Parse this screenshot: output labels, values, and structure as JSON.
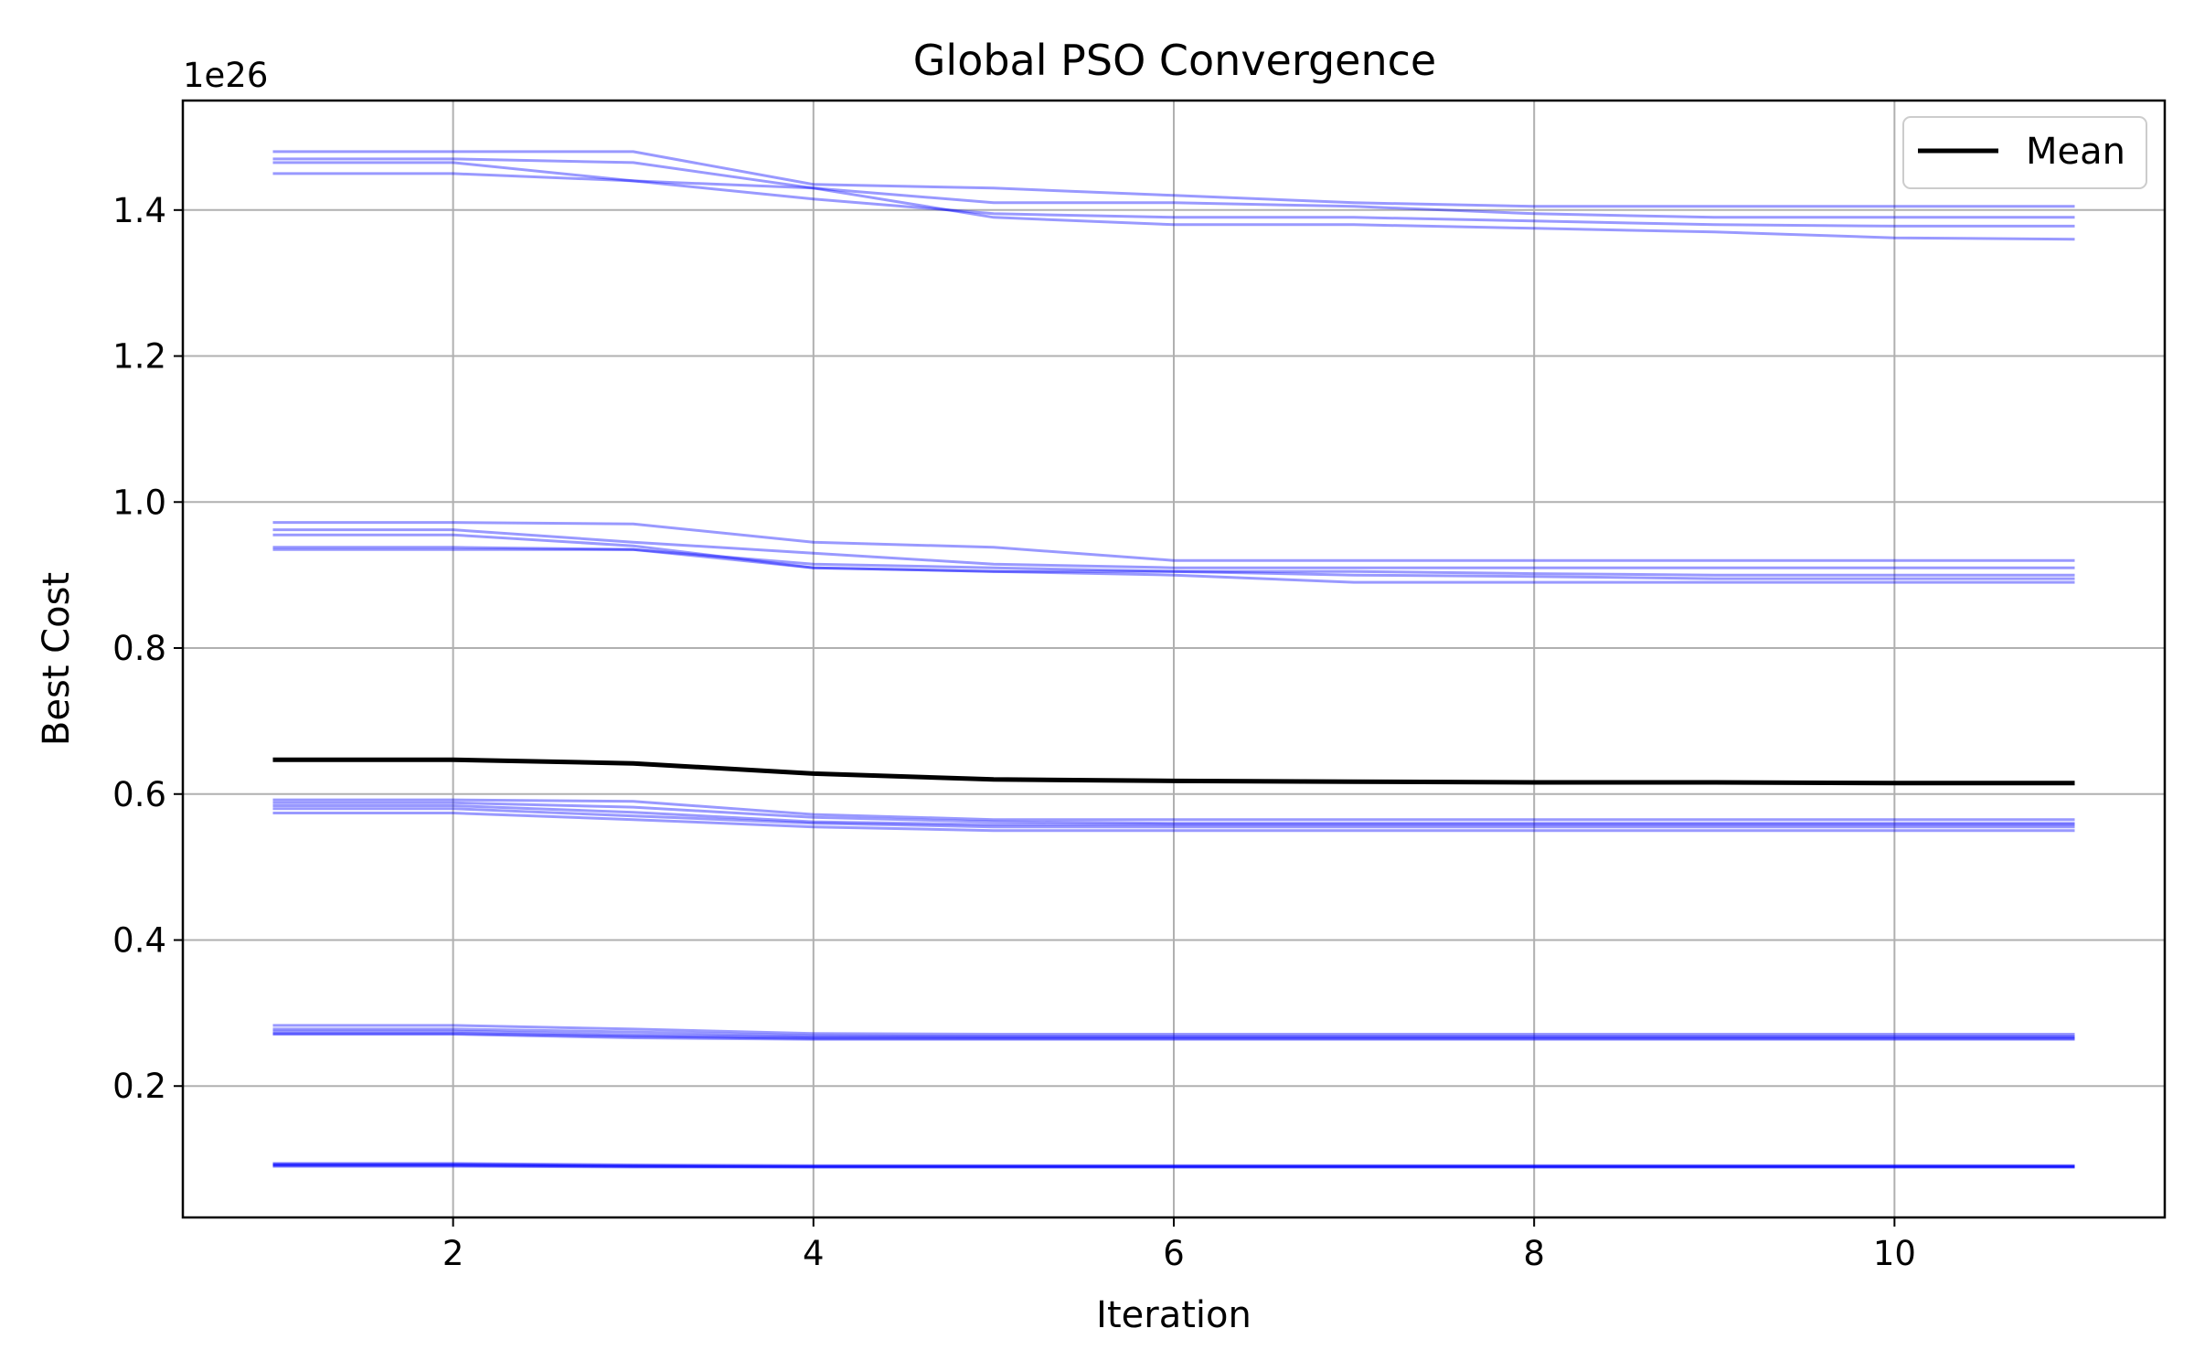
{
  "chart_data": {
    "type": "line",
    "title": "Global PSO Convergence",
    "xlabel": "Iteration",
    "ylabel": "Best Cost",
    "y_offset_label": "1e26",
    "xlim": [
      0.5,
      11.5
    ],
    "ylim": [
      0.02,
      1.55
    ],
    "x_ticks": [
      2,
      4,
      6,
      8,
      10
    ],
    "x_tick_labels": [
      "2",
      "4",
      "6",
      "8",
      "10"
    ],
    "y_ticks": [
      0.2,
      0.4,
      0.6,
      0.8,
      1.0,
      1.2,
      1.4
    ],
    "y_tick_labels": [
      "0.2",
      "0.4",
      "0.6",
      "0.8",
      "1.0",
      "1.2",
      "1.4"
    ],
    "grid": true,
    "legend_position": "top-right",
    "x": [
      1,
      2,
      3,
      4,
      5,
      6,
      7,
      8,
      9,
      10,
      11
    ],
    "run_color": "#0000ff",
    "mean_color": "#000000",
    "runs": [
      [
        1.48,
        1.48,
        1.48,
        1.435,
        1.43,
        1.42,
        1.41,
        1.405,
        1.405,
        1.405,
        1.405
      ],
      [
        1.47,
        1.47,
        1.465,
        1.43,
        1.41,
        1.41,
        1.405,
        1.395,
        1.39,
        1.39,
        1.39
      ],
      [
        1.465,
        1.465,
        1.44,
        1.415,
        1.395,
        1.39,
        1.39,
        1.385,
        1.38,
        1.378,
        1.378
      ],
      [
        1.45,
        1.45,
        1.44,
        1.43,
        1.39,
        1.38,
        1.38,
        1.375,
        1.37,
        1.362,
        1.36
      ],
      [
        0.972,
        0.972,
        0.97,
        0.945,
        0.938,
        0.92,
        0.92,
        0.92,
        0.92,
        0.92,
        0.92
      ],
      [
        0.962,
        0.962,
        0.945,
        0.93,
        0.915,
        0.91,
        0.91,
        0.91,
        0.91,
        0.91,
        0.91
      ],
      [
        0.955,
        0.955,
        0.94,
        0.91,
        0.905,
        0.905,
        0.905,
        0.902,
        0.9,
        0.9,
        0.9
      ],
      [
        0.938,
        0.938,
        0.935,
        0.915,
        0.91,
        0.905,
        0.9,
        0.898,
        0.895,
        0.895,
        0.895
      ],
      [
        0.935,
        0.935,
        0.935,
        0.91,
        0.905,
        0.9,
        0.89,
        0.89,
        0.89,
        0.89,
        0.89
      ],
      [
        0.592,
        0.592,
        0.59,
        0.572,
        0.565,
        0.565,
        0.565,
        0.565,
        0.565,
        0.565,
        0.565
      ],
      [
        0.588,
        0.588,
        0.582,
        0.568,
        0.562,
        0.56,
        0.56,
        0.56,
        0.56,
        0.56,
        0.56
      ],
      [
        0.584,
        0.584,
        0.575,
        0.562,
        0.558,
        0.558,
        0.558,
        0.558,
        0.558,
        0.558,
        0.558
      ],
      [
        0.58,
        0.58,
        0.57,
        0.56,
        0.555,
        0.555,
        0.555,
        0.555,
        0.555,
        0.555,
        0.555
      ],
      [
        0.574,
        0.574,
        0.565,
        0.555,
        0.55,
        0.55,
        0.55,
        0.55,
        0.55,
        0.55,
        0.55
      ],
      [
        0.283,
        0.283,
        0.278,
        0.272,
        0.271,
        0.271,
        0.271,
        0.271,
        0.271,
        0.271,
        0.271
      ],
      [
        0.278,
        0.278,
        0.274,
        0.269,
        0.268,
        0.268,
        0.268,
        0.268,
        0.268,
        0.268,
        0.268
      ],
      [
        0.275,
        0.275,
        0.27,
        0.267,
        0.267,
        0.267,
        0.267,
        0.267,
        0.267,
        0.267,
        0.267
      ],
      [
        0.272,
        0.272,
        0.268,
        0.265,
        0.265,
        0.265,
        0.265,
        0.265,
        0.265,
        0.265,
        0.265
      ],
      [
        0.271,
        0.271,
        0.266,
        0.264,
        0.264,
        0.264,
        0.264,
        0.264,
        0.264,
        0.264,
        0.264
      ],
      [
        0.094,
        0.094,
        0.092,
        0.091,
        0.091,
        0.091,
        0.091,
        0.091,
        0.091,
        0.091,
        0.091
      ],
      [
        0.093,
        0.093,
        0.091,
        0.09,
        0.09,
        0.09,
        0.09,
        0.09,
        0.09,
        0.09,
        0.09
      ],
      [
        0.092,
        0.092,
        0.09,
        0.09,
        0.09,
        0.09,
        0.09,
        0.09,
        0.09,
        0.09,
        0.09
      ],
      [
        0.091,
        0.091,
        0.09,
        0.089,
        0.089,
        0.089,
        0.089,
        0.089,
        0.089,
        0.089,
        0.089
      ],
      [
        0.09,
        0.09,
        0.089,
        0.089,
        0.089,
        0.089,
        0.089,
        0.089,
        0.089,
        0.089,
        0.089
      ]
    ],
    "series": [
      {
        "name": "Mean",
        "values": [
          0.647,
          0.647,
          0.642,
          0.628,
          0.62,
          0.618,
          0.617,
          0.616,
          0.616,
          0.615,
          0.615
        ]
      }
    ]
  }
}
